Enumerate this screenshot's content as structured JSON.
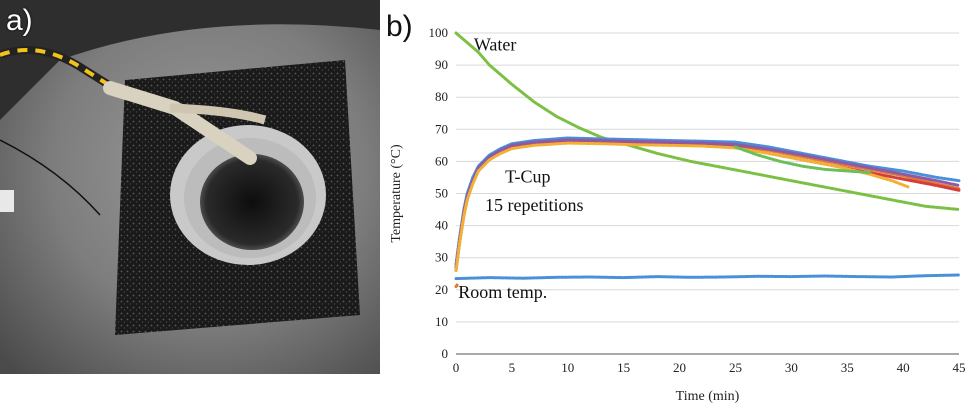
{
  "panels": {
    "a": {
      "label": "a)"
    },
    "b": {
      "label": "b)"
    }
  },
  "chart_data": {
    "type": "scatter",
    "title": "",
    "xlabel": "Time (min)",
    "ylabel": "Temperature (°C)",
    "xlim": [
      0,
      45
    ],
    "ylim": [
      0,
      100
    ],
    "xticks": [
      0,
      5,
      10,
      15,
      20,
      25,
      30,
      35,
      40,
      45
    ],
    "yticks": [
      0,
      10,
      20,
      30,
      40,
      50,
      60,
      70,
      80,
      90,
      100
    ],
    "grid": "horizontal",
    "annotations": [
      {
        "text": "Water",
        "series": "water"
      },
      {
        "text": "T-Cup",
        "series": "tcup"
      },
      {
        "text": "15 repetitions",
        "series": "tcup"
      },
      {
        "text": "Room temp.",
        "series": "room"
      }
    ],
    "series": [
      {
        "id": "water",
        "color": "#7bc043",
        "x": [
          0,
          1,
          2,
          3,
          4,
          5,
          7,
          9,
          11,
          13,
          15,
          18,
          21,
          24,
          27,
          30,
          33,
          36,
          39,
          42,
          45
        ],
        "y": [
          100,
          97,
          94,
          90,
          87,
          84,
          78.5,
          74,
          70.5,
          67.5,
          65.5,
          62.5,
          60,
          58,
          56,
          54,
          52,
          50,
          48,
          46,
          45
        ]
      },
      {
        "id": "tcup-1",
        "color": "#4a90d9",
        "x": [
          0,
          0.3,
          0.7,
          1,
          1.5,
          2,
          3,
          4,
          5,
          7,
          10,
          13,
          16,
          19,
          22,
          25,
          28,
          31,
          34,
          37,
          40,
          43,
          45
        ],
        "y": [
          28,
          36,
          45,
          50,
          55,
          58.5,
          62,
          64,
          65.5,
          66.5,
          67.3,
          67,
          66.8,
          66.5,
          66.3,
          66,
          64.5,
          62.5,
          60.5,
          58.5,
          57,
          55,
          54
        ]
      },
      {
        "id": "tcup-2",
        "color": "#e07a2f",
        "x": [
          0,
          0.3,
          0.7,
          1,
          1.5,
          2,
          3,
          4,
          5,
          7,
          10,
          13,
          16,
          19,
          22,
          25,
          28,
          31,
          34,
          37,
          40,
          43,
          45
        ],
        "y": [
          27,
          35,
          44,
          49,
          54,
          57.5,
          61,
          63,
          64.5,
          65.5,
          66.3,
          66.2,
          66,
          65.8,
          65.5,
          65,
          63.5,
          61.5,
          59.5,
          57.5,
          55.5,
          53,
          51.5
        ]
      },
      {
        "id": "tcup-3",
        "color": "#d63c3c",
        "x": [
          0,
          0.3,
          0.7,
          1,
          1.5,
          2,
          3,
          4,
          5,
          7,
          10,
          13,
          16,
          19,
          22,
          25,
          28,
          31,
          34,
          37,
          40,
          43,
          45
        ],
        "y": [
          26,
          34,
          43,
          48,
          53.5,
          57,
          61,
          63,
          64.5,
          65.5,
          66,
          65.8,
          65.5,
          65.3,
          65,
          64.5,
          62.5,
          60.5,
          58.5,
          56.5,
          54.5,
          52.5,
          51
        ]
      },
      {
        "id": "tcup-4",
        "color": "#8e5aa8",
        "x": [
          0,
          0.3,
          0.7,
          1,
          1.5,
          2,
          3,
          4,
          5,
          7,
          10,
          13,
          16,
          19,
          22,
          25,
          28,
          31,
          34,
          37,
          40,
          43,
          45
        ],
        "y": [
          27,
          35,
          44,
          49,
          54,
          58,
          61.5,
          63.5,
          65,
          66,
          66.7,
          66.5,
          66.2,
          66,
          65.8,
          65.3,
          63.8,
          62,
          60,
          58,
          56,
          54,
          52.5
        ]
      },
      {
        "id": "tcup-5",
        "color": "#f2b134",
        "x": [
          0,
          0.3,
          0.7,
          1,
          1.5,
          2,
          3,
          4,
          5,
          7,
          10,
          13,
          16,
          19,
          22,
          25,
          28,
          31,
          34,
          37,
          39,
          40.5
        ],
        "y": [
          26,
          34,
          43,
          48,
          53,
          57,
          60.5,
          62.5,
          64,
          65,
          65.7,
          65.5,
          65.2,
          65,
          64.8,
          64.2,
          62.5,
          60.5,
          58.5,
          56,
          54,
          52
        ]
      },
      {
        "id": "tcup-6",
        "color": "#6bbf59",
        "x": [
          25,
          27,
          29,
          31,
          33,
          35,
          37
        ],
        "y": [
          64.5,
          62,
          60,
          58.5,
          57.5,
          57,
          56.5
        ]
      },
      {
        "id": "room",
        "color": "#4a90d9",
        "x": [
          0,
          3,
          6,
          9,
          12,
          15,
          18,
          21,
          24,
          27,
          30,
          33,
          36,
          39,
          42,
          45
        ],
        "y": [
          23.5,
          23.8,
          23.6,
          23.9,
          24,
          23.8,
          24.1,
          23.9,
          24,
          24.2,
          24.1,
          24.3,
          24.1,
          24,
          24.4,
          24.6
        ]
      },
      {
        "id": "room-start",
        "color": "#e07a2f",
        "x": [
          0,
          0.1
        ],
        "y": [
          21,
          21.5
        ]
      }
    ]
  }
}
